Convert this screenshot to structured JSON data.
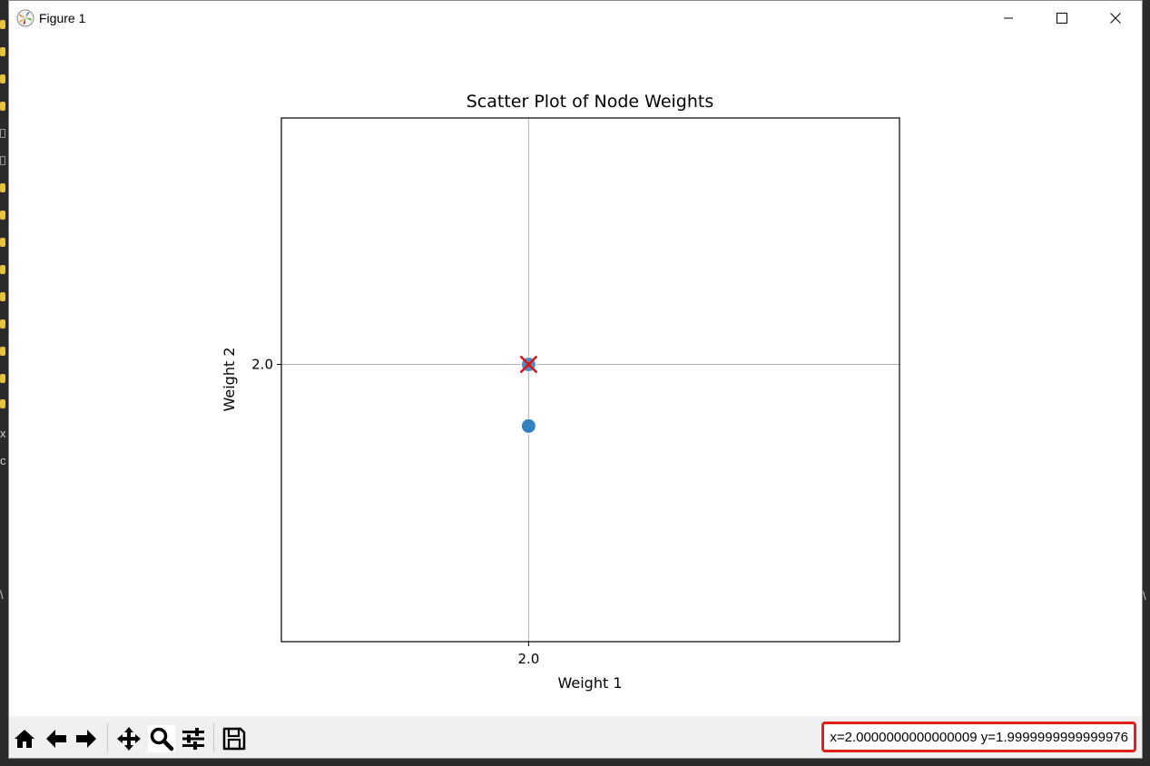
{
  "window": {
    "title": "Figure 1"
  },
  "background_strip": {
    "glyphs": [
      "x",
      "c",
      "\\"
    ],
    "right_glyph": "\\"
  },
  "toolbar": {
    "buttons": [
      {
        "name": "home-icon",
        "label": "Home"
      },
      {
        "name": "back-icon",
        "label": "Back"
      },
      {
        "name": "forward-icon",
        "label": "Forward"
      },
      {
        "name": "pan-icon",
        "label": "Pan"
      },
      {
        "name": "zoom-icon",
        "label": "Zoom",
        "active": true
      },
      {
        "name": "configure-subplots-icon",
        "label": "Configure subplots"
      },
      {
        "name": "save-icon",
        "label": "Save"
      }
    ],
    "coordinates": "x=2.0000000000000009 y=1.9999999999999976",
    "coordinates_highlight_color": "#e0201c"
  },
  "chart_data": {
    "type": "scatter",
    "title": "Scatter Plot of Node Weights",
    "xlabel": "Weight 1",
    "ylabel": "Weight 2",
    "xticks": [
      2.0
    ],
    "yticks": [
      2.0
    ],
    "xtick_labels": [
      "2.0"
    ],
    "ytick_labels": [
      "2.0"
    ],
    "xlim": [
      1.9999999999999991,
      2.0000000000000013
    ],
    "ylim": [
      1.999999999999998,
      2.0000000000000018
    ],
    "grid": true,
    "series": [
      {
        "marker": "circle",
        "color": "#2e7fbf",
        "points": [
          {
            "x": 2.0,
            "y": 1.9999999999999996
          },
          {
            "x": 2.0,
            "y": 1.9999999999999996
          },
          {
            "x": 2.0,
            "y": 2.0
          }
        ]
      },
      {
        "marker": "x",
        "color": "#e01010",
        "points": [
          {
            "x": 2.0,
            "y": 2.0
          }
        ]
      }
    ]
  }
}
